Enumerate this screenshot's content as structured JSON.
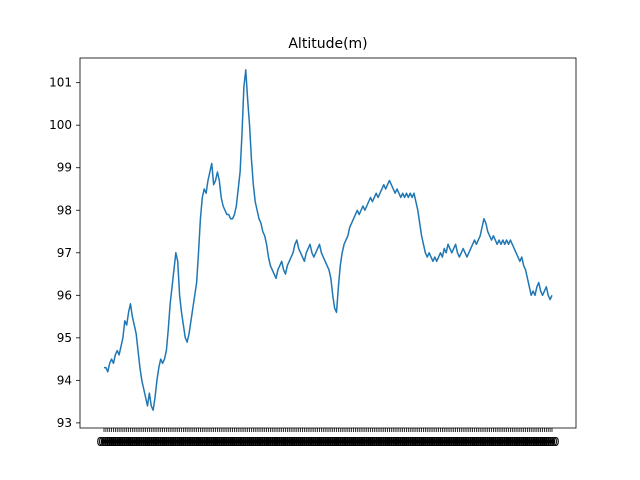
{
  "chart_data": {
    "type": "line",
    "title": "Altitude(m)",
    "xlabel": "",
    "ylabel": "",
    "ylim": [
      92.88,
      101.58
    ],
    "grid": false,
    "legend": "none",
    "y_ticks": [
      "93",
      "94",
      "95",
      "96",
      "97",
      "98",
      "99",
      "100",
      "101"
    ],
    "x_ticks": "dense overlapping category labels (unreadable)",
    "colors": {
      "line": "#1f77b4",
      "axes": "#000000",
      "background": "#ffffff"
    },
    "series": [
      {
        "values": [
          94.3,
          94.3,
          94.2,
          94.4,
          94.5,
          94.4,
          94.6,
          94.7,
          94.6,
          94.8,
          95.0,
          95.4,
          95.3,
          95.6,
          95.8,
          95.5,
          95.3,
          95.1,
          94.7,
          94.3,
          94.0,
          93.8,
          93.6,
          93.4,
          93.7,
          93.4,
          93.3,
          93.6,
          94.0,
          94.3,
          94.5,
          94.4,
          94.5,
          94.7,
          95.2,
          95.8,
          96.2,
          96.6,
          97.0,
          96.8,
          96.0,
          95.6,
          95.3,
          95.0,
          94.9,
          95.1,
          95.4,
          95.7,
          96.0,
          96.3,
          97.0,
          97.8,
          98.3,
          98.5,
          98.4,
          98.7,
          98.9,
          99.1,
          98.6,
          98.7,
          98.9,
          98.7,
          98.3,
          98.1,
          98.0,
          97.9,
          97.9,
          97.8,
          97.8,
          97.9,
          98.1,
          98.5,
          98.9,
          99.8,
          100.9,
          101.3,
          100.6,
          100.0,
          99.2,
          98.6,
          98.2,
          98.0,
          97.8,
          97.7,
          97.5,
          97.4,
          97.2,
          96.9,
          96.7,
          96.6,
          96.5,
          96.4,
          96.6,
          96.7,
          96.8,
          96.6,
          96.5,
          96.7,
          96.8,
          96.9,
          97.0,
          97.2,
          97.3,
          97.1,
          97.0,
          96.9,
          96.8,
          97.0,
          97.1,
          97.2,
          97.0,
          96.9,
          97.0,
          97.1,
          97.2,
          97.0,
          96.9,
          96.8,
          96.7,
          96.6,
          96.4,
          96.0,
          95.7,
          95.6,
          96.2,
          96.7,
          97.0,
          97.2,
          97.3,
          97.4,
          97.6,
          97.7,
          97.8,
          97.9,
          98.0,
          97.9,
          98.0,
          98.1,
          98.0,
          98.1,
          98.2,
          98.3,
          98.2,
          98.3,
          98.4,
          98.3,
          98.4,
          98.5,
          98.6,
          98.5,
          98.6,
          98.7,
          98.6,
          98.5,
          98.4,
          98.5,
          98.4,
          98.3,
          98.4,
          98.3,
          98.4,
          98.3,
          98.4,
          98.3,
          98.4,
          98.2,
          98.0,
          97.7,
          97.4,
          97.2,
          97.0,
          96.9,
          97.0,
          96.9,
          96.8,
          96.9,
          96.8,
          96.9,
          97.0,
          96.9,
          97.1,
          97.0,
          97.2,
          97.1,
          97.0,
          97.1,
          97.2,
          97.0,
          96.9,
          97.0,
          97.1,
          97.0,
          96.9,
          97.0,
          97.1,
          97.2,
          97.3,
          97.2,
          97.3,
          97.4,
          97.6,
          97.8,
          97.7,
          97.5,
          97.4,
          97.3,
          97.4,
          97.3,
          97.2,
          97.3,
          97.2,
          97.3,
          97.2,
          97.3,
          97.2,
          97.3,
          97.2,
          97.1,
          97.0,
          96.9,
          96.8,
          96.9,
          96.7,
          96.6,
          96.4,
          96.2,
          96.0,
          96.1,
          96.0,
          96.2,
          96.3,
          96.1,
          96.0,
          96.1,
          96.2,
          96.0,
          95.9,
          96.0
        ]
      }
    ]
  }
}
